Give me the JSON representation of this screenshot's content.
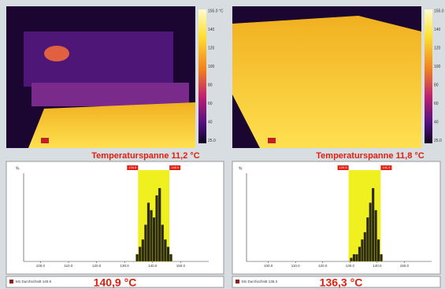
{
  "panels": [
    {
      "scale_labels": [
        "155.0 °C",
        "140",
        "120",
        "100",
        "80",
        "60",
        "40",
        "25.0"
      ],
      "span": "Temperaturspanne 11,2 °C",
      "histogram": {
        "type": "histogram",
        "y_label": "%",
        "range_labels": [
          {
            "value": 134.8,
            "label": "134.8"
          },
          {
            "value": 146.0,
            "label": "146.0"
          }
        ],
        "bins": [
          134,
          135,
          136,
          137,
          138,
          139,
          140,
          141,
          142,
          143,
          144,
          145,
          146,
          147
        ],
        "counts": [
          1,
          2,
          3,
          5,
          8,
          7,
          6,
          9,
          10,
          5,
          3,
          2,
          1
        ],
        "xlim": [
          94,
          160
        ],
        "ylim": [
          0,
          12
        ],
        "xticks": [
          {
            "value": 100,
            "label": "100.0"
          },
          {
            "value": 110,
            "label": "110.0"
          },
          {
            "value": 120,
            "label": "120.0"
          },
          {
            "value": 130,
            "label": "130.0"
          },
          {
            "value": 140,
            "label": "140.0"
          },
          {
            "value": 150,
            "label": "150.0"
          }
        ]
      },
      "legend": "M1 Durchschnitt 140.9",
      "value": "140,9 °C"
    },
    {
      "scale_labels": [
        "155.0 °C",
        "140",
        "120",
        "100",
        "80",
        "60",
        "40",
        "25.0"
      ],
      "span": "Temperaturspanne 11,8 °C",
      "histogram": {
        "type": "histogram",
        "y_label": "%",
        "range_labels": [
          {
            "value": 129.5,
            "label": "129.5"
          },
          {
            "value": 141.3,
            "label": "141.3"
          }
        ],
        "bins": [
          130,
          131,
          132,
          133,
          134,
          135,
          136,
          137,
          138,
          139,
          140,
          141,
          142
        ],
        "counts": [
          0.5,
          1,
          1,
          2,
          3,
          4,
          6,
          8,
          10,
          7,
          3,
          1
        ],
        "xlim": [
          92,
          160
        ],
        "ylim": [
          0,
          12
        ],
        "xticks": [
          {
            "value": 100,
            "label": "100.0"
          },
          {
            "value": 110,
            "label": "110.0"
          },
          {
            "value": 120,
            "label": "120.0"
          },
          {
            "value": 130,
            "label": "130.0"
          },
          {
            "value": 140,
            "label": "140.0"
          },
          {
            "value": 150,
            "label": "150.0"
          }
        ]
      },
      "legend": "M1 Durchschnitt 136.3",
      "value": "136,3 °C"
    }
  ]
}
